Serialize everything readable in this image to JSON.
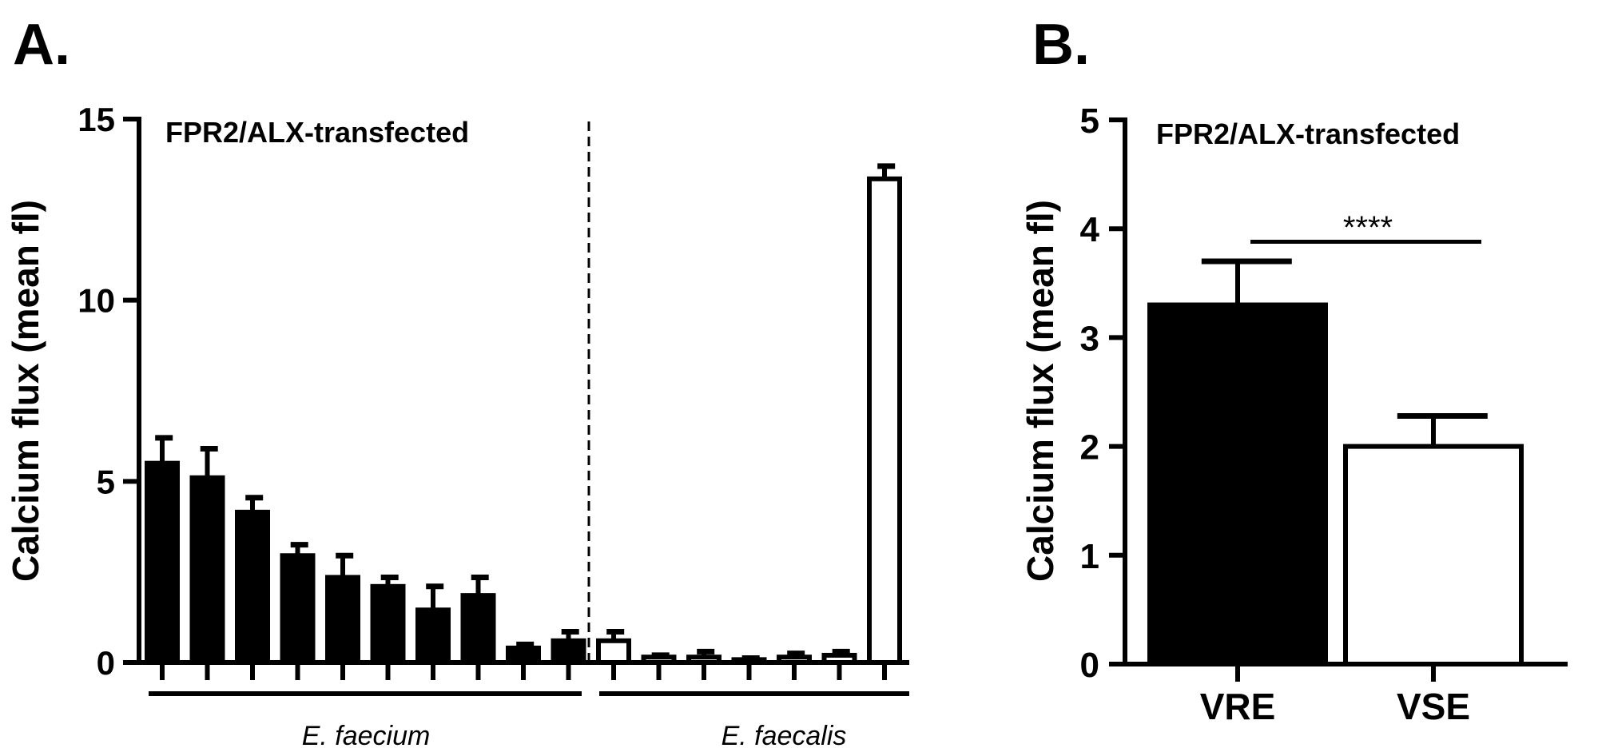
{
  "chart_data": [
    {
      "type": "bar",
      "panel_label": "A.",
      "title": "FPR2/ALX-transfected",
      "ylabel": "Calcium flux (mean fl)",
      "xlabel": "",
      "ylim": [
        0,
        15
      ],
      "yticks": [
        "0",
        "5",
        "10",
        "15"
      ],
      "groups": [
        {
          "name": "E. faecium",
          "fill": "#000000",
          "values": [
            5.5,
            5.1,
            4.15,
            2.95,
            2.35,
            2.1,
            1.45,
            1.85,
            0.4,
            0.6
          ],
          "error_upper": [
            6.2,
            5.9,
            4.55,
            3.25,
            2.95,
            2.35,
            2.1,
            2.35,
            0.5,
            0.85
          ]
        },
        {
          "name": "E. faecalis",
          "fill": "#ffffff",
          "values": [
            0.6,
            0.15,
            0.15,
            0.08,
            0.15,
            0.2,
            13.35
          ],
          "error_upper": [
            0.85,
            0.2,
            0.3,
            0.12,
            0.25,
            0.3,
            13.7
          ]
        }
      ],
      "divider": "dashed vertical line between groups"
    },
    {
      "type": "bar",
      "panel_label": "B.",
      "title": "FPR2/ALX-transfected",
      "ylabel": "Calcium flux (mean fl)",
      "ylim": [
        0,
        5
      ],
      "yticks": [
        "0",
        "1",
        "2",
        "3",
        "4",
        "5"
      ],
      "categories": [
        "VRE",
        "VSE"
      ],
      "values": [
        3.3,
        2.0
      ],
      "error_upper": [
        3.7,
        2.28
      ],
      "fills": [
        "#000000",
        "#ffffff"
      ],
      "significance": {
        "label": "****",
        "between": [
          "VRE",
          "VSE"
        ],
        "y": 3.88
      }
    }
  ]
}
